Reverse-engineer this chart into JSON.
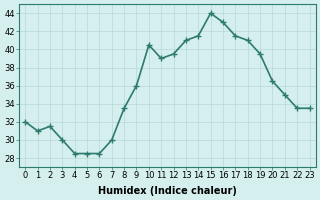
{
  "x": [
    0,
    1,
    2,
    3,
    4,
    5,
    6,
    7,
    8,
    9,
    10,
    11,
    12,
    13,
    14,
    15,
    16,
    17,
    18,
    19,
    20,
    21,
    22,
    23
  ],
  "y": [
    32,
    31,
    31.5,
    30,
    28.5,
    28.5,
    28.5,
    30,
    33.5,
    36,
    40.5,
    39,
    39.5,
    41,
    41.5,
    44,
    43,
    41.5,
    41,
    39.5,
    36.5,
    35,
    33.5,
    33.5
  ],
  "line_color": "#2d7a6e",
  "marker": "+",
  "bg_color": "#d5efef",
  "grid_color": "#b8d8d8",
  "xlabel": "Humidex (Indice chaleur)",
  "xlim": [
    -0.5,
    23.5
  ],
  "ylim": [
    27,
    45
  ],
  "yticks": [
    28,
    30,
    32,
    34,
    36,
    38,
    40,
    42,
    44
  ],
  "xticks": [
    0,
    1,
    2,
    3,
    4,
    5,
    6,
    7,
    8,
    9,
    10,
    11,
    12,
    13,
    14,
    15,
    16,
    17,
    18,
    19,
    20,
    21,
    22,
    23
  ],
  "tick_fontsize": 6,
  "xlabel_fontsize": 7,
  "line_width": 1.2,
  "marker_size": 4
}
